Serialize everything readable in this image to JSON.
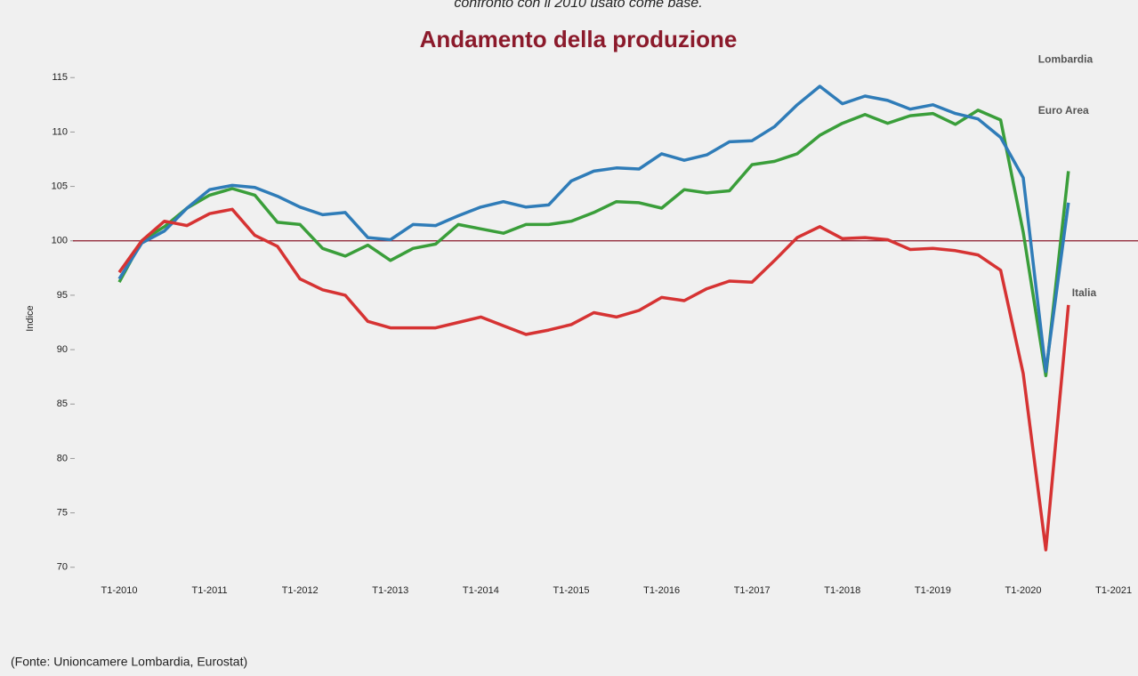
{
  "chart_data": {
    "type": "line",
    "title": "Andamento della produzione",
    "subtitle": "confronto con il 2010 usato come base.",
    "y_label": "Indice",
    "source": "(Fonte: Unioncamere Lombardia, Eurostat)",
    "categories": [
      "T1-2010",
      null,
      null,
      null,
      "T1-2011",
      null,
      null,
      null,
      "T1-2012",
      null,
      null,
      null,
      "T1-2013",
      null,
      null,
      null,
      "T1-2014",
      null,
      null,
      null,
      "T1-2015",
      null,
      null,
      null,
      "T1-2016",
      null,
      null,
      null,
      "T1-2017",
      null,
      null,
      null,
      "T1-2018",
      null,
      null,
      null,
      "T1-2019",
      null,
      null,
      null,
      "T1-2020",
      null,
      null,
      null,
      "T1-2021"
    ],
    "series": [
      {
        "name": "Lombardia",
        "color": "#3a9e3a",
        "values": [
          96.2,
          100.0,
          101.3,
          103.0,
          104.2,
          104.8,
          104.2,
          101.7,
          101.5,
          99.3,
          98.6,
          99.6,
          98.2,
          99.3,
          99.7,
          101.5,
          101.1,
          100.7,
          101.5,
          101.5,
          101.8,
          102.6,
          103.6,
          103.5,
          103.0,
          104.7,
          104.4,
          104.6,
          107.0,
          107.3,
          108.0,
          109.7,
          110.8,
          111.6,
          110.8,
          111.5,
          111.7,
          110.7,
          112.0,
          111.1,
          100.8,
          87.6,
          106.4,
          null,
          null
        ]
      },
      {
        "name": "Euro Area",
        "color": "#2f7cb8",
        "values": [
          96.5,
          99.8,
          100.9,
          103.0,
          104.7,
          105.1,
          104.9,
          104.1,
          103.1,
          102.4,
          102.6,
          100.3,
          100.1,
          101.5,
          101.4,
          102.3,
          103.1,
          103.6,
          103.1,
          103.3,
          105.5,
          106.4,
          106.7,
          106.6,
          108.0,
          107.4,
          107.9,
          109.1,
          109.2,
          110.5,
          112.5,
          114.2,
          112.6,
          113.3,
          112.9,
          112.1,
          112.5,
          111.7,
          111.2,
          109.5,
          105.8,
          88.0,
          103.5,
          null,
          null
        ]
      },
      {
        "name": "Italia",
        "color": "#d63333",
        "values": [
          97.1,
          100.0,
          101.8,
          101.4,
          102.5,
          102.9,
          100.5,
          99.5,
          96.5,
          95.5,
          95.0,
          92.6,
          92.0,
          92.0,
          92.0,
          92.5,
          93.0,
          92.2,
          91.4,
          91.8,
          92.3,
          93.4,
          93.0,
          93.6,
          94.8,
          94.5,
          95.6,
          96.3,
          96.2,
          98.2,
          100.3,
          101.3,
          100.2,
          100.3,
          100.1,
          99.2,
          99.3,
          99.1,
          98.7,
          97.3,
          87.8,
          71.6,
          94.1,
          null,
          null
        ]
      }
    ],
    "reference_line": 100,
    "reference_color": "#8b1a2b",
    "ylim": [
      69,
      116
    ],
    "yticks": [
      70,
      75,
      80,
      85,
      90,
      95,
      100,
      105,
      110,
      115
    ]
  }
}
